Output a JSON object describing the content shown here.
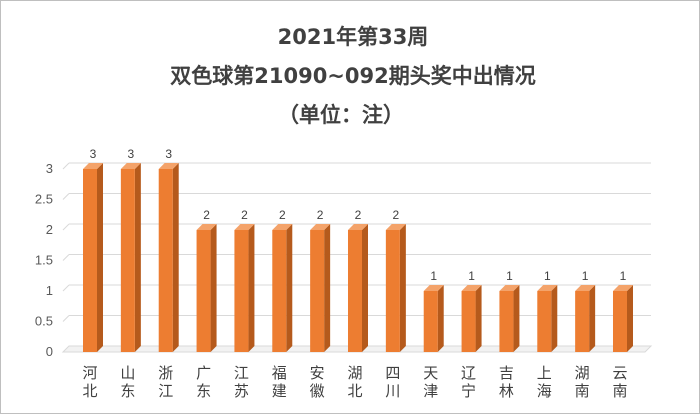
{
  "chart_data": {
    "type": "bar",
    "title_lines": [
      "2021年第33周",
      "双色球第21090~092期头奖中出情况",
      "（单位：注）"
    ],
    "xlabel": "",
    "ylabel": "",
    "categories": [
      "河北",
      "山东",
      "浙江",
      "广东",
      "江苏",
      "福建",
      "安徽",
      "湖北",
      "四川",
      "天津",
      "辽宁",
      "吉林",
      "上海",
      "湖南",
      "云南"
    ],
    "values": [
      3,
      3,
      3,
      2,
      2,
      2,
      2,
      2,
      2,
      1,
      1,
      1,
      1,
      1,
      1
    ],
    "data_labels": [
      "3",
      "3",
      "3",
      "2",
      "2",
      "2",
      "2",
      "2",
      "2",
      "1",
      "1",
      "1",
      "1",
      "1",
      "1"
    ],
    "ylim": [
      0,
      3
    ],
    "yticks": [
      0,
      0.5,
      1,
      1.5,
      2,
      2.5,
      3
    ],
    "ytick_labels": [
      "0",
      "0.5",
      "1",
      "1.5",
      "2",
      "2.5",
      "3"
    ],
    "grid": true,
    "legend": "none",
    "colors": {
      "bar_front": "#ed7d31",
      "bar_side": "#b55a1c",
      "bar_top": "#f4a36a",
      "grid": "#d9d9d9",
      "floor": "#d9d9d9"
    }
  }
}
